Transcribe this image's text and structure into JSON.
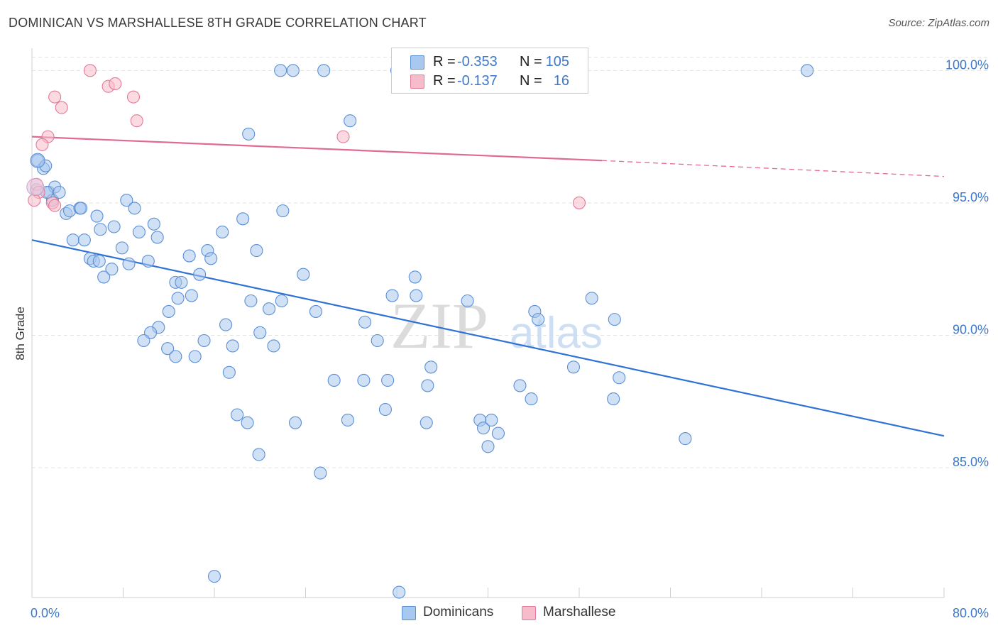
{
  "title": "DOMINICAN VS MARSHALLESE 8TH GRADE CORRELATION CHART",
  "source": "Source: ZipAtlas.com",
  "watermark": {
    "zip": "ZIP",
    "atlas": "atlas"
  },
  "legend": {
    "rows": [
      {
        "r_label": "R =",
        "r_value": "-0.353",
        "n_label": "N =",
        "n_value": "105",
        "color": "#a9c8ef",
        "border": "#5b8fd6"
      },
      {
        "r_label": "R =",
        "r_value": "-0.137",
        "n_label": "N =",
        "n_value": "16",
        "color": "#f7bccb",
        "border": "#e37a98"
      }
    ]
  },
  "bottom_legend": [
    {
      "label": "Dominicans",
      "color": "#a9c8ef",
      "border": "#5b8fd6"
    },
    {
      "label": "Marshallese",
      "color": "#f7bccb",
      "border": "#e37a98"
    }
  ],
  "chart_data": {
    "type": "scatter",
    "ylabel": "8th Grade",
    "xlim": [
      0,
      80
    ],
    "ylim": [
      80.1,
      101.0
    ],
    "x_tick_labels": [
      "0.0%",
      "80.0%"
    ],
    "y_ticks": [
      85,
      90,
      95,
      100
    ],
    "y_tick_labels": [
      "85.0%",
      "90.0%",
      "95.0%",
      "100.0%"
    ],
    "grid": true,
    "series": [
      {
        "name": "Dominicans",
        "color": "#a9c8ef",
        "stroke": "#5b8fd6",
        "trend": {
          "x": [
            0,
            80
          ],
          "y": [
            93.6,
            86.2
          ],
          "color": "#2f72d6",
          "dashed_from": null
        },
        "points": [
          [
            0.5,
            96.6
          ],
          [
            1.0,
            96.3
          ],
          [
            1.2,
            96.4
          ],
          [
            1.5,
            95.4
          ],
          [
            1.8,
            95.1
          ],
          [
            2.0,
            95.6
          ],
          [
            2.4,
            95.4
          ],
          [
            3.0,
            94.6
          ],
          [
            3.3,
            94.7
          ],
          [
            4.2,
            94.8
          ],
          [
            4.3,
            94.8
          ],
          [
            5.7,
            94.5
          ],
          [
            6.0,
            94.0
          ],
          [
            7.2,
            94.1
          ],
          [
            8.3,
            95.1
          ],
          [
            9.0,
            94.8
          ],
          [
            3.6,
            93.6
          ],
          [
            4.6,
            93.6
          ],
          [
            5.1,
            92.9
          ],
          [
            5.4,
            92.8
          ],
          [
            5.9,
            92.8
          ],
          [
            6.3,
            92.2
          ],
          [
            7.0,
            92.5
          ],
          [
            7.9,
            93.3
          ],
          [
            8.5,
            92.7
          ],
          [
            9.4,
            93.9
          ],
          [
            10.2,
            92.8
          ],
          [
            10.7,
            94.2
          ],
          [
            11.0,
            93.7
          ],
          [
            12.6,
            92.0
          ],
          [
            13.1,
            92.0
          ],
          [
            13.8,
            93.0
          ],
          [
            14.7,
            92.3
          ],
          [
            15.4,
            93.2
          ],
          [
            15.7,
            92.9
          ],
          [
            16.7,
            93.9
          ],
          [
            18.5,
            94.4
          ],
          [
            19.7,
            93.2
          ],
          [
            22.0,
            94.7
          ],
          [
            12.0,
            90.9
          ],
          [
            12.8,
            91.4
          ],
          [
            14.0,
            91.5
          ],
          [
            11.1,
            90.3
          ],
          [
            10.4,
            90.1
          ],
          [
            9.8,
            89.8
          ],
          [
            11.9,
            89.5
          ],
          [
            12.6,
            89.2
          ],
          [
            14.3,
            89.2
          ],
          [
            15.1,
            89.8
          ],
          [
            17.0,
            90.4
          ],
          [
            17.6,
            89.6
          ],
          [
            17.3,
            88.6
          ],
          [
            19.2,
            91.3
          ],
          [
            20.0,
            90.1
          ],
          [
            20.8,
            91.0
          ],
          [
            21.2,
            89.6
          ],
          [
            21.9,
            91.3
          ],
          [
            23.8,
            92.3
          ],
          [
            24.9,
            90.9
          ],
          [
            18.0,
            87.0
          ],
          [
            18.9,
            86.7
          ],
          [
            19.9,
            85.5
          ],
          [
            23.1,
            86.7
          ],
          [
            25.3,
            84.8
          ],
          [
            26.5,
            88.3
          ],
          [
            27.7,
            86.8
          ],
          [
            29.1,
            88.3
          ],
          [
            29.2,
            90.5
          ],
          [
            30.3,
            89.8
          ],
          [
            31.2,
            88.3
          ],
          [
            31.0,
            87.2
          ],
          [
            31.6,
            91.5
          ],
          [
            33.6,
            92.2
          ],
          [
            33.7,
            91.5
          ],
          [
            34.7,
            88.1
          ],
          [
            35.0,
            88.8
          ],
          [
            34.6,
            86.7
          ],
          [
            38.2,
            91.3
          ],
          [
            39.3,
            86.8
          ],
          [
            39.6,
            86.5
          ],
          [
            40.3,
            86.8
          ],
          [
            40.9,
            86.3
          ],
          [
            40.0,
            85.8
          ],
          [
            42.8,
            88.1
          ],
          [
            43.8,
            87.6
          ],
          [
            44.1,
            90.9
          ],
          [
            44.4,
            90.6
          ],
          [
            47.5,
            88.8
          ],
          [
            49.1,
            91.4
          ],
          [
            51.1,
            90.6
          ],
          [
            51.5,
            88.4
          ],
          [
            51.0,
            87.6
          ],
          [
            57.3,
            86.1
          ],
          [
            21.8,
            100.0
          ],
          [
            22.9,
            100.0
          ],
          [
            25.6,
            100.0
          ],
          [
            32.0,
            100.0
          ],
          [
            68.0,
            100.0
          ],
          [
            27.9,
            98.1
          ],
          [
            19.0,
            97.6
          ],
          [
            16.0,
            80.9
          ],
          [
            32.2,
            80.3
          ],
          [
            0.4,
            95.5
          ],
          [
            1.3,
            95.4
          ]
        ]
      },
      {
        "name": "Marshallese",
        "color": "#f7bccb",
        "stroke": "#e37a98",
        "trend": {
          "x": [
            0,
            50,
            80
          ],
          "y": [
            97.5,
            96.6,
            96.0
          ],
          "color": "#e06b92",
          "dashed_from": 50
        },
        "points": [
          [
            5.1,
            100.0
          ],
          [
            6.7,
            99.4
          ],
          [
            7.3,
            99.5
          ],
          [
            2.0,
            99.0
          ],
          [
            8.9,
            99.0
          ],
          [
            2.6,
            98.6
          ],
          [
            9.2,
            98.1
          ],
          [
            1.4,
            97.5
          ],
          [
            0.9,
            97.2
          ],
          [
            27.3,
            97.5
          ],
          [
            48.0,
            95.0
          ],
          [
            0.4,
            95.7
          ],
          [
            0.6,
            95.4
          ],
          [
            1.8,
            95.0
          ],
          [
            2.0,
            94.9
          ],
          [
            0.2,
            95.1
          ]
        ]
      }
    ]
  }
}
